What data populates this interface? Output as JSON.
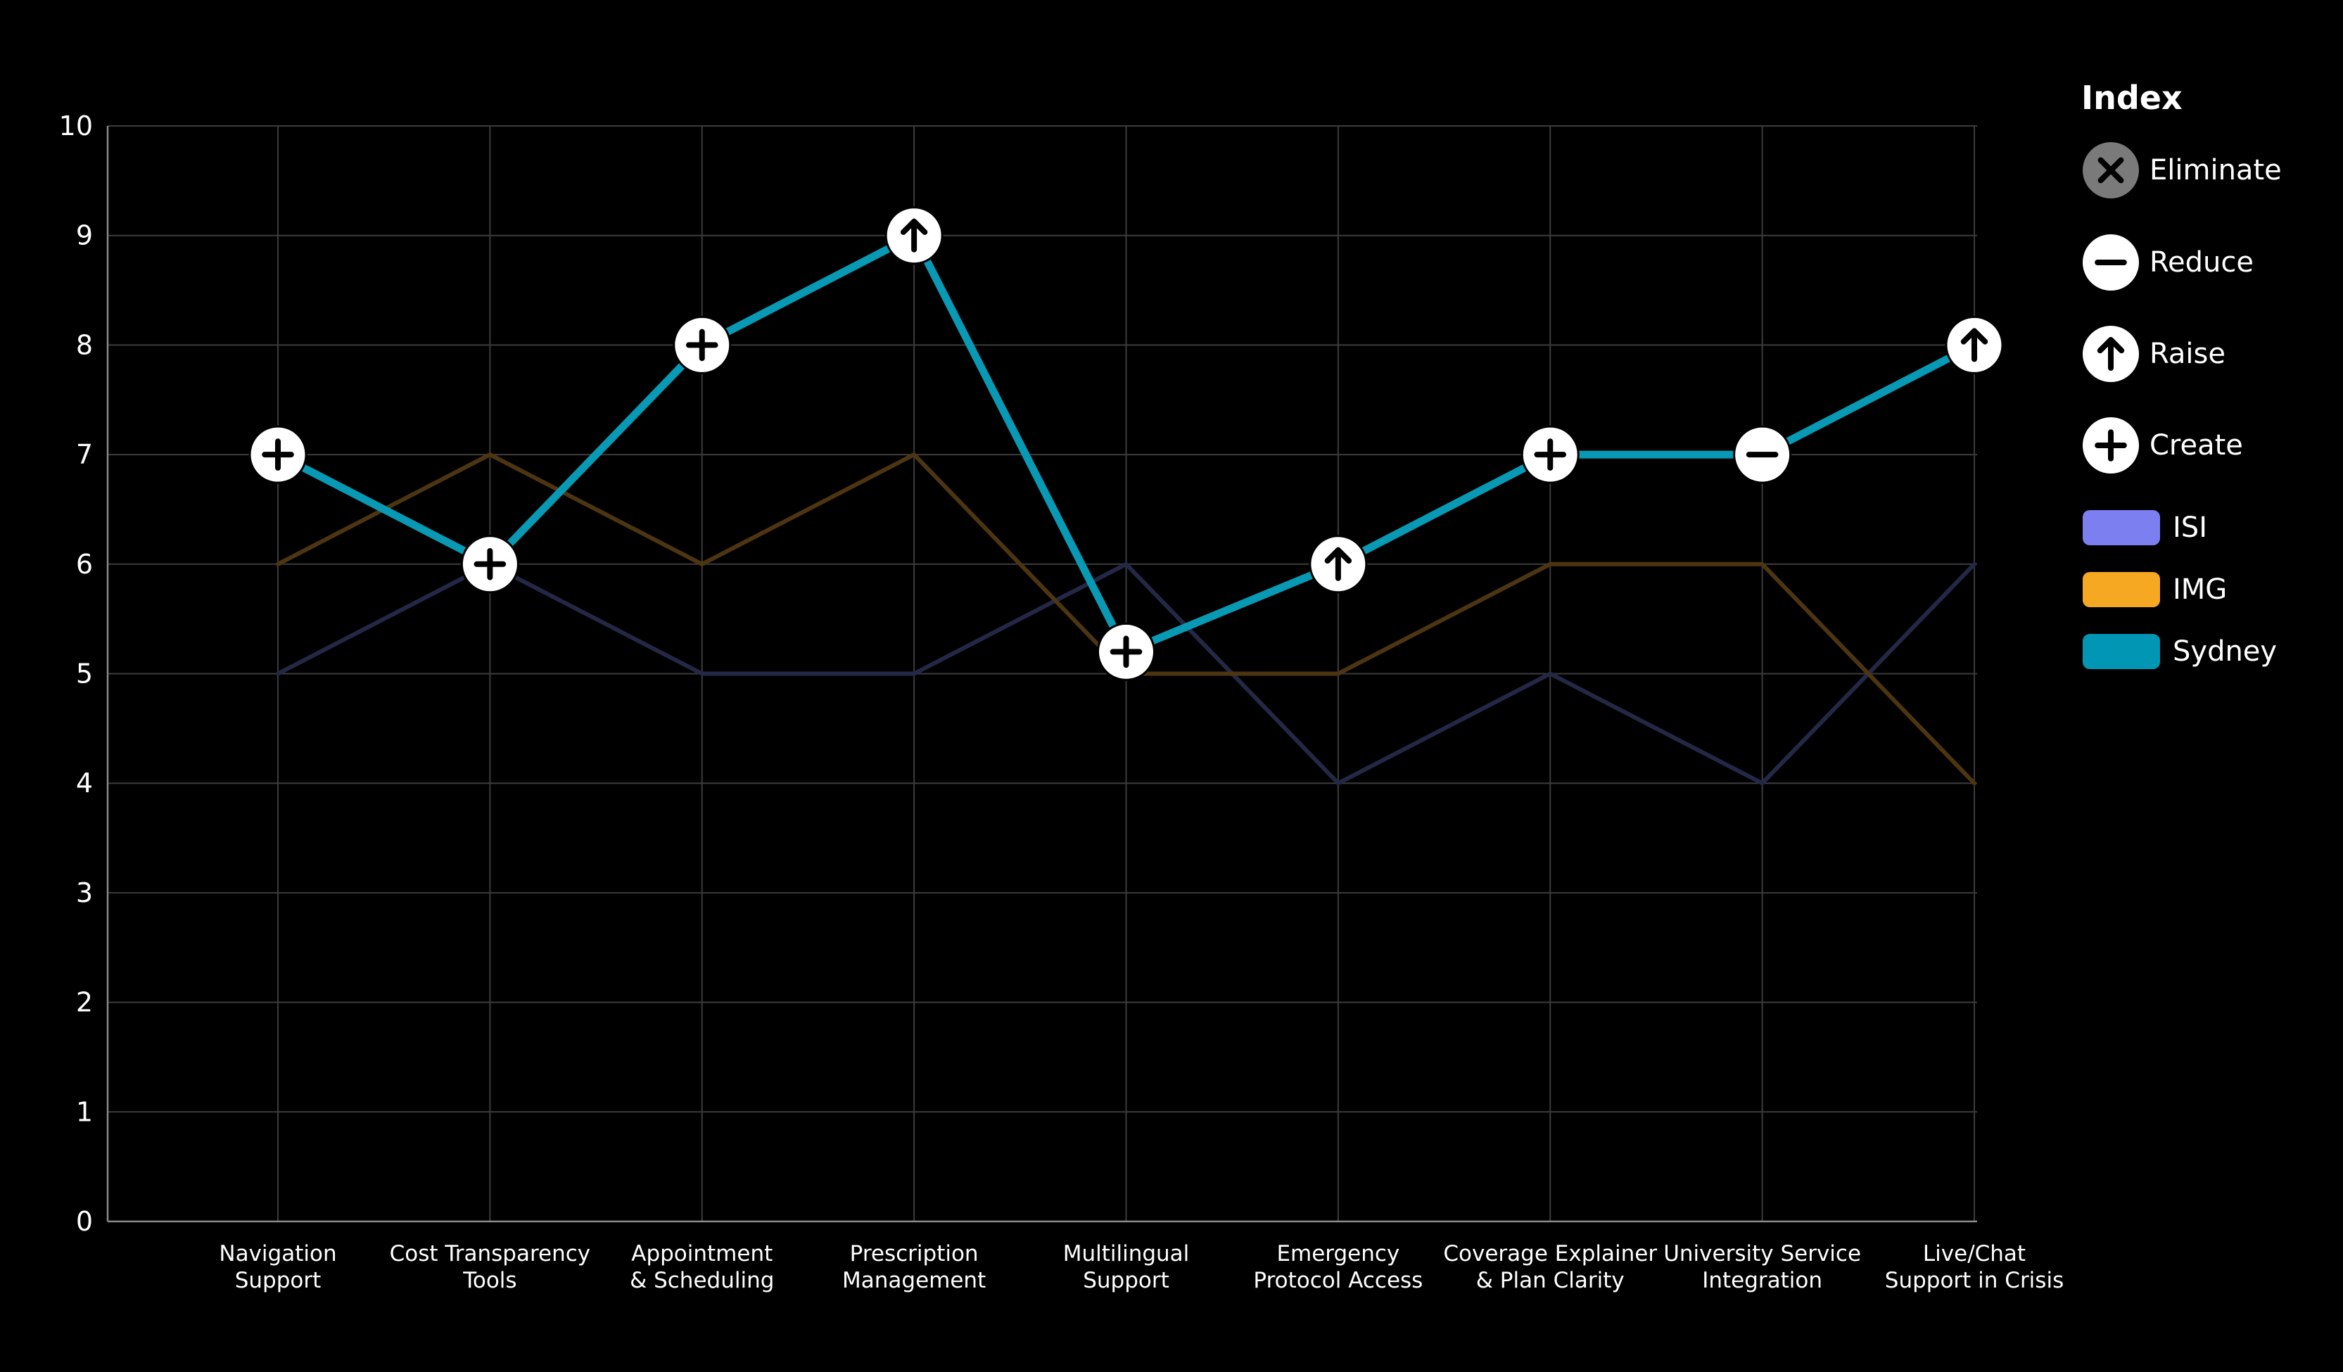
{
  "chart_data": {
    "type": "line",
    "title": "",
    "xlabel": "",
    "ylabel": "",
    "ylim": [
      0,
      10
    ],
    "yticks": [
      0,
      1,
      2,
      3,
      4,
      5,
      6,
      7,
      8,
      9,
      10
    ],
    "grid": true,
    "categories": [
      [
        "Navigation",
        "Support"
      ],
      [
        "Cost Transparency",
        "Tools"
      ],
      [
        "Appointment",
        "& Scheduling"
      ],
      [
        "Prescription",
        "Management"
      ],
      [
        "Multilingual",
        "Support"
      ],
      [
        "Emergency",
        "Protocol Access"
      ],
      [
        "Coverage Explainer",
        "& Plan Clarity"
      ],
      [
        "University Service",
        "Integration"
      ],
      [
        "Live/Chat",
        "Support in Crisis"
      ]
    ],
    "series": [
      {
        "name": "ISI",
        "color": "#7b7ff0",
        "line_color": "#242846",
        "values": [
          5,
          6,
          5,
          5,
          6,
          4,
          5,
          4,
          6
        ]
      },
      {
        "name": "IMG",
        "color": "#f7a823",
        "line_color": "#4d3512",
        "values": [
          6,
          7,
          6,
          7,
          5,
          5,
          6,
          6,
          4
        ]
      },
      {
        "name": "Sydney",
        "color": "#0096b4",
        "line_color": "#0899b4",
        "values": [
          7,
          6,
          8,
          9,
          5.2,
          6,
          7,
          7,
          8
        ],
        "markers": [
          "create",
          "create",
          "create",
          "raise",
          "create",
          "raise",
          "create",
          "reduce",
          "raise"
        ]
      }
    ],
    "legend": {
      "title": "Index",
      "placement": "right",
      "action_items": [
        {
          "key": "eliminate",
          "label": "Eliminate",
          "icon": "close-icon"
        },
        {
          "key": "reduce",
          "label": "Reduce",
          "icon": "minus-icon"
        },
        {
          "key": "raise",
          "label": "Raise",
          "icon": "arrow-up-icon"
        },
        {
          "key": "create",
          "label": "Create",
          "icon": "plus-icon"
        }
      ],
      "series_items": [
        {
          "label": "ISI",
          "color": "#7b7ff0"
        },
        {
          "label": "IMG",
          "color": "#f7a823"
        },
        {
          "label": "Sydney",
          "color": "#0096b4"
        }
      ]
    }
  }
}
